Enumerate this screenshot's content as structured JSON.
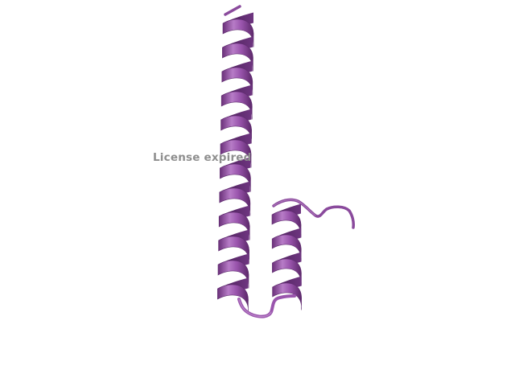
{
  "scene": {
    "background_color": "#ffffff",
    "molecule_color": "#9a55ad",
    "molecule_dark_color": "#5e2a6e",
    "molecule_highlight_color": "#c99ad4",
    "structures": [
      {
        "kind": "alpha-helix",
        "label": "long-helix"
      },
      {
        "kind": "alpha-helix",
        "label": "short-helix"
      },
      {
        "kind": "loop",
        "label": "connecting-loop"
      },
      {
        "kind": "loop",
        "label": "c-terminal-tail"
      }
    ]
  },
  "watermark": {
    "text": "License expired",
    "color": "#8e8e8e"
  }
}
